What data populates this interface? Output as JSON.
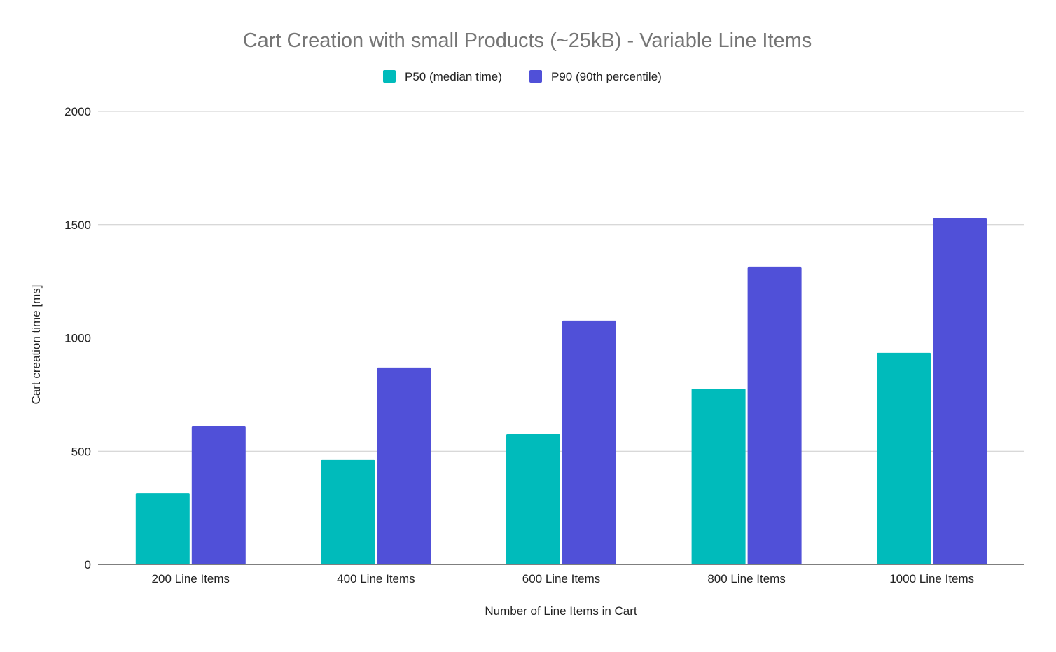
{
  "chart_data": {
    "type": "bar",
    "title": "Cart Creation with small Products (~25kB) - Variable Line Items",
    "xlabel": "Number of Line Items in Cart",
    "ylabel": "Cart creation time [ms]",
    "ylim": [
      0,
      2000
    ],
    "yticks": [
      0,
      500,
      1000,
      1500,
      2000
    ],
    "grid": true,
    "legend_position": "top",
    "categories": [
      "200 Line Items",
      "400 Line Items",
      "600 Line Items",
      "800 Line Items",
      "1000 Line Items"
    ],
    "series": [
      {
        "name": "P50 (median time)",
        "color": "#00BBBB",
        "values": [
          315,
          461,
          575,
          776,
          934
        ]
      },
      {
        "name": "P90 (90th percentile)",
        "color": "#5050D8",
        "values": [
          609,
          869,
          1076,
          1314,
          1530
        ]
      }
    ]
  }
}
